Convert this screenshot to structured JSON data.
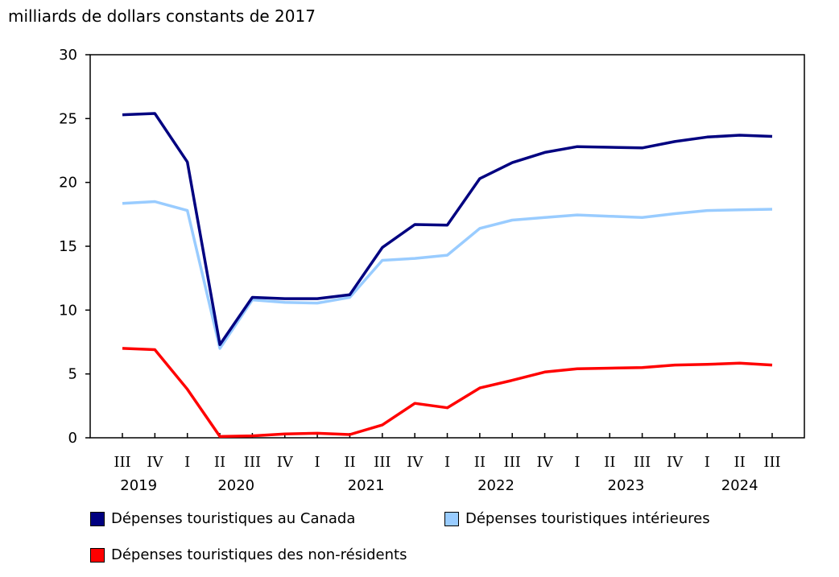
{
  "chart_data": {
    "type": "line",
    "ylabel": "milliards de dollars constants de 2017",
    "ylim": [
      0,
      30
    ],
    "yticks": [
      "0",
      "5",
      "10",
      "15",
      "20",
      "25",
      "30"
    ],
    "quarters": [
      "III",
      "IV",
      "I",
      "II",
      "III",
      "IV",
      "I",
      "II",
      "III",
      "IV",
      "I",
      "II",
      "III",
      "IV",
      "I",
      "II",
      "III",
      "IV",
      "I",
      "II",
      "III"
    ],
    "years": [
      {
        "label": "2019",
        "start": 0,
        "end": 1
      },
      {
        "label": "2020",
        "start": 2,
        "end": 5
      },
      {
        "label": "2021",
        "start": 6,
        "end": 9
      },
      {
        "label": "2022",
        "start": 10,
        "end": 13
      },
      {
        "label": "2023",
        "start": 14,
        "end": 17
      },
      {
        "label": "2024",
        "start": 18,
        "end": 20
      }
    ],
    "series": [
      {
        "name": "Dépenses touristiques au Canada",
        "color": "#000080",
        "values": [
          25.3,
          25.4,
          21.6,
          7.3,
          11.0,
          10.9,
          10.9,
          11.2,
          14.9,
          16.7,
          16.65,
          20.3,
          21.55,
          22.35,
          22.8,
          22.75,
          22.7,
          23.2,
          23.55,
          23.7,
          23.6
        ]
      },
      {
        "name": "Dépenses touristiques intérieures",
        "color": "#99ccff",
        "values": [
          18.35,
          18.5,
          17.8,
          7.0,
          10.8,
          10.6,
          10.55,
          11.0,
          13.9,
          14.05,
          14.3,
          16.4,
          17.05,
          17.25,
          17.45,
          17.35,
          17.25,
          17.55,
          17.8,
          17.85,
          17.9
        ]
      },
      {
        "name": "Dépenses touristiques des non-résidents",
        "color": "#ff0000",
        "values": [
          7.0,
          6.9,
          3.8,
          0.1,
          0.15,
          0.3,
          0.35,
          0.25,
          1.0,
          2.7,
          2.35,
          3.9,
          4.5,
          5.15,
          5.4,
          5.45,
          5.5,
          5.7,
          5.75,
          5.85,
          5.7
        ]
      }
    ]
  }
}
